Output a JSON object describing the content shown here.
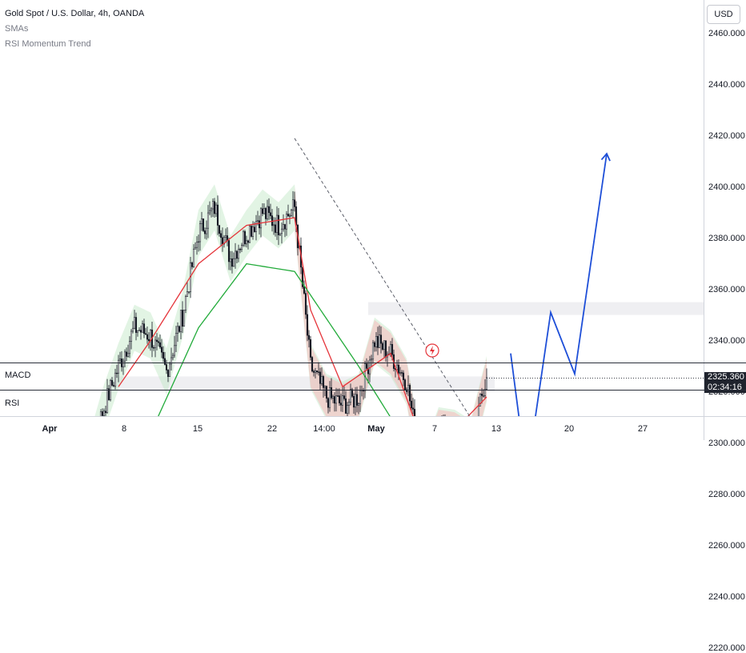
{
  "legend": {
    "title": "Gold Spot / U.S. Dollar, 4h, OANDA",
    "indicators": [
      "SMAs",
      "RSI Momentum Trend"
    ]
  },
  "price_axis": {
    "currency": "USD",
    "ticks": [
      "2460.000",
      "2440.000",
      "2420.000",
      "2400.000",
      "2380.000",
      "2360.000",
      "2340.000",
      "2320.000",
      "2300.000",
      "2280.000",
      "2260.000",
      "2240.000",
      "2220.000"
    ],
    "current_price": "2325.360",
    "countdown": "02:34:16"
  },
  "panes": {
    "macd": "MACD",
    "rsi": "RSI"
  },
  "time_axis": {
    "labels": [
      "Apr",
      "8",
      "15",
      "22",
      "14:00",
      "May",
      "7",
      "13",
      "20",
      "27"
    ]
  },
  "chart_data": {
    "type": "candlestick",
    "symbol": "Gold Spot / U.S. Dollar",
    "interval": "4h",
    "ylim": [
      2213,
      2473
    ],
    "y_ticks": [
      2220,
      2240,
      2260,
      2280,
      2300,
      2320,
      2340,
      2360,
      2380,
      2400,
      2420,
      2440,
      2460
    ],
    "x_labels": [
      "Apr",
      "8",
      "15",
      "22",
      "14:00",
      "May",
      "7",
      "13",
      "20",
      "27"
    ],
    "last_price": 2325.36,
    "price_path": [
      [
        0,
        2218
      ],
      [
        10,
        2275
      ],
      [
        20,
        2295
      ],
      [
        30,
        2290
      ],
      [
        40,
        2312
      ],
      [
        50,
        2330
      ],
      [
        60,
        2345
      ],
      [
        70,
        2342
      ],
      [
        80,
        2328
      ],
      [
        90,
        2350
      ],
      [
        100,
        2382
      ],
      [
        110,
        2392
      ],
      [
        120,
        2372
      ],
      [
        130,
        2382
      ],
      [
        140,
        2390
      ],
      [
        150,
        2385
      ],
      [
        160,
        2392
      ],
      [
        170,
        2330
      ],
      [
        180,
        2318
      ],
      [
        190,
        2315
      ],
      [
        200,
        2318
      ],
      [
        210,
        2340
      ],
      [
        220,
        2335
      ],
      [
        230,
        2324
      ],
      [
        240,
        2288
      ],
      [
        250,
        2305
      ],
      [
        260,
        2304
      ],
      [
        270,
        2300
      ],
      [
        280,
        2325
      ]
    ],
    "series": [
      {
        "name": "SMA fast",
        "color": "#e5343a",
        "values": [
          [
            50,
            2322
          ],
          [
            70,
            2340
          ],
          [
            100,
            2370
          ],
          [
            130,
            2385
          ],
          [
            160,
            2388
          ],
          [
            170,
            2352
          ],
          [
            190,
            2322
          ],
          [
            220,
            2335
          ],
          [
            240,
            2300
          ],
          [
            260,
            2305
          ],
          [
            280,
            2318
          ]
        ]
      },
      {
        "name": "SMA long",
        "color": "#22ab3a",
        "values": [
          [
            30,
            2228
          ],
          [
            60,
            2290
          ],
          [
            100,
            2345
          ],
          [
            130,
            2370
          ],
          [
            160,
            2367
          ],
          [
            200,
            2330
          ],
          [
            240,
            2290
          ],
          [
            280,
            2293
          ]
        ]
      },
      {
        "name": "SMA 200",
        "color": "#22ab3a",
        "values": [
          [
            160,
            2213
          ],
          [
            190,
            2245
          ],
          [
            230,
            2270
          ],
          [
            280,
            2293
          ]
        ]
      }
    ],
    "trendline": [
      [
        160,
        2419
      ],
      [
        290,
        2290
      ]
    ],
    "zones": [
      [
        2350,
        2355
      ],
      [
        2320,
        2326
      ],
      [
        2288,
        2298
      ],
      [
        2270,
        2280
      ],
      [
        2213,
        2222
      ]
    ],
    "projection": [
      [
        295,
        2335
      ],
      [
        305,
        2287
      ],
      [
        320,
        2351
      ],
      [
        335,
        2327
      ],
      [
        355,
        2413
      ]
    ]
  }
}
